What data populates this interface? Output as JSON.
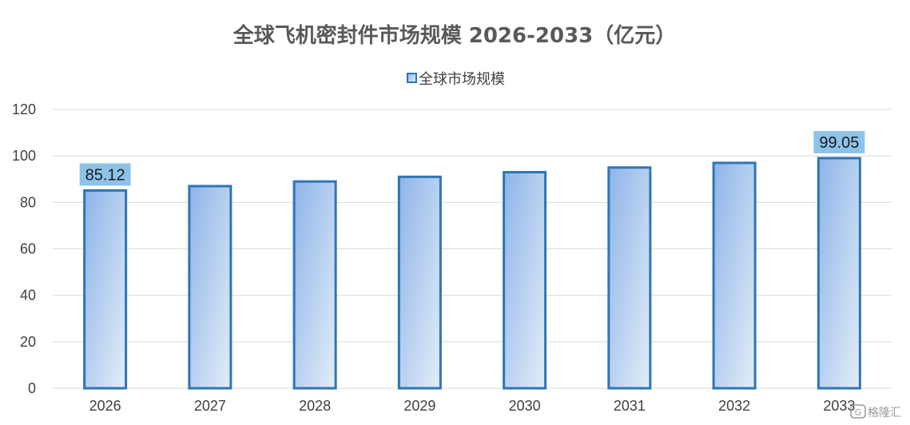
{
  "chart_data": {
    "type": "bar",
    "title": "全球飞机密封件市场规模 2026-2033（亿元）",
    "categories": [
      "2026",
      "2027",
      "2028",
      "2029",
      "2030",
      "2031",
      "2032",
      "2033"
    ],
    "series": [
      {
        "name": "全球市场规模",
        "values": [
          85.12,
          87.0,
          89.0,
          91.0,
          93.0,
          95.0,
          97.0,
          99.05
        ]
      }
    ],
    "data_labels": [
      {
        "category": "2026",
        "text": "85.12"
      },
      {
        "category": "2033",
        "text": "99.05"
      }
    ],
    "ylim": [
      0,
      120
    ],
    "yticks": [
      0,
      20,
      40,
      60,
      80,
      100,
      120
    ],
    "xlabel": "",
    "ylabel": "",
    "grid": true,
    "legend_position": "top-center",
    "colors": {
      "bar_fill_top": "#8db4e8",
      "bar_fill_bottom": "#e3edf9",
      "bar_border": "#2e75b6",
      "label_bg": "#8ec3e9",
      "grid": "#d9d9d9",
      "title": "#595959",
      "text": "#404040"
    }
  },
  "watermark": {
    "text": "格隆汇",
    "icon": "logo-icon"
  }
}
